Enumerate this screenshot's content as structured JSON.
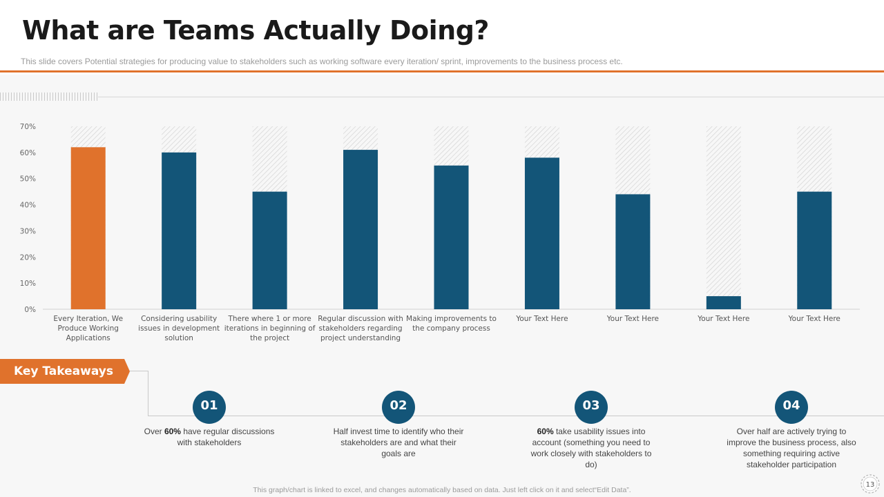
{
  "slide": {
    "title": "What are Teams Actually Doing?",
    "subtitle": "This slide covers  Potential strategies for producing value  to stakeholders such as working  software every  iteration/ sprint, improvements  to the business process etc.",
    "footer": "This graph/chart is linked to excel,  and changes automatically based on data. Just left click on it and select“Edit Data”.",
    "page_number": "13"
  },
  "colors": {
    "accent": "#e0722c",
    "navy": "#135578",
    "rule": "#e0722c",
    "hatch": "#d0d0d0"
  },
  "chart_data": {
    "type": "bar",
    "categories": [
      [
        "Every Iteration, We",
        "Produce Working",
        "Applications"
      ],
      [
        "Considering usability",
        "issues in development",
        "solution"
      ],
      [
        "There where 1 or more",
        "iterations in beginning of",
        "the project"
      ],
      [
        "Regular discussion with",
        "stakeholders regarding",
        "project understanding"
      ],
      [
        "Making improvements to",
        "the company process"
      ],
      [
        "Your Text Here"
      ],
      [
        "Your Text Here"
      ],
      [
        "Your Text Here"
      ],
      [
        "Your Text Here"
      ]
    ],
    "values": [
      62,
      60,
      45,
      61,
      55,
      58,
      44,
      5,
      45
    ],
    "background_max": 70,
    "highlight_index": 0,
    "ylim": [
      0,
      70
    ],
    "yticks": [
      "0%",
      "10%",
      "20%",
      "30%",
      "40%",
      "50%",
      "60%",
      "70%"
    ],
    "xlabel": "",
    "ylabel": "",
    "legend": "none",
    "grid": false
  },
  "takeaways": {
    "label": "Key Takeaways",
    "items": [
      {
        "number": "01",
        "pre": "Over ",
        "bold": "60%",
        "post": " have regular discussions with stakeholders"
      },
      {
        "number": "02",
        "pre": "",
        "bold": "",
        "post": "Half invest time to identify who their stakeholders are and what their goals are"
      },
      {
        "number": "03",
        "pre": "",
        "bold": "60%",
        "post": " take usability issues into account (something you need to work closely with stakeholders to do)"
      },
      {
        "number": "04",
        "pre": "",
        "bold": "",
        "post": "Over half are actively trying to improve the business process, also something requiring active stakeholder participation"
      }
    ]
  }
}
